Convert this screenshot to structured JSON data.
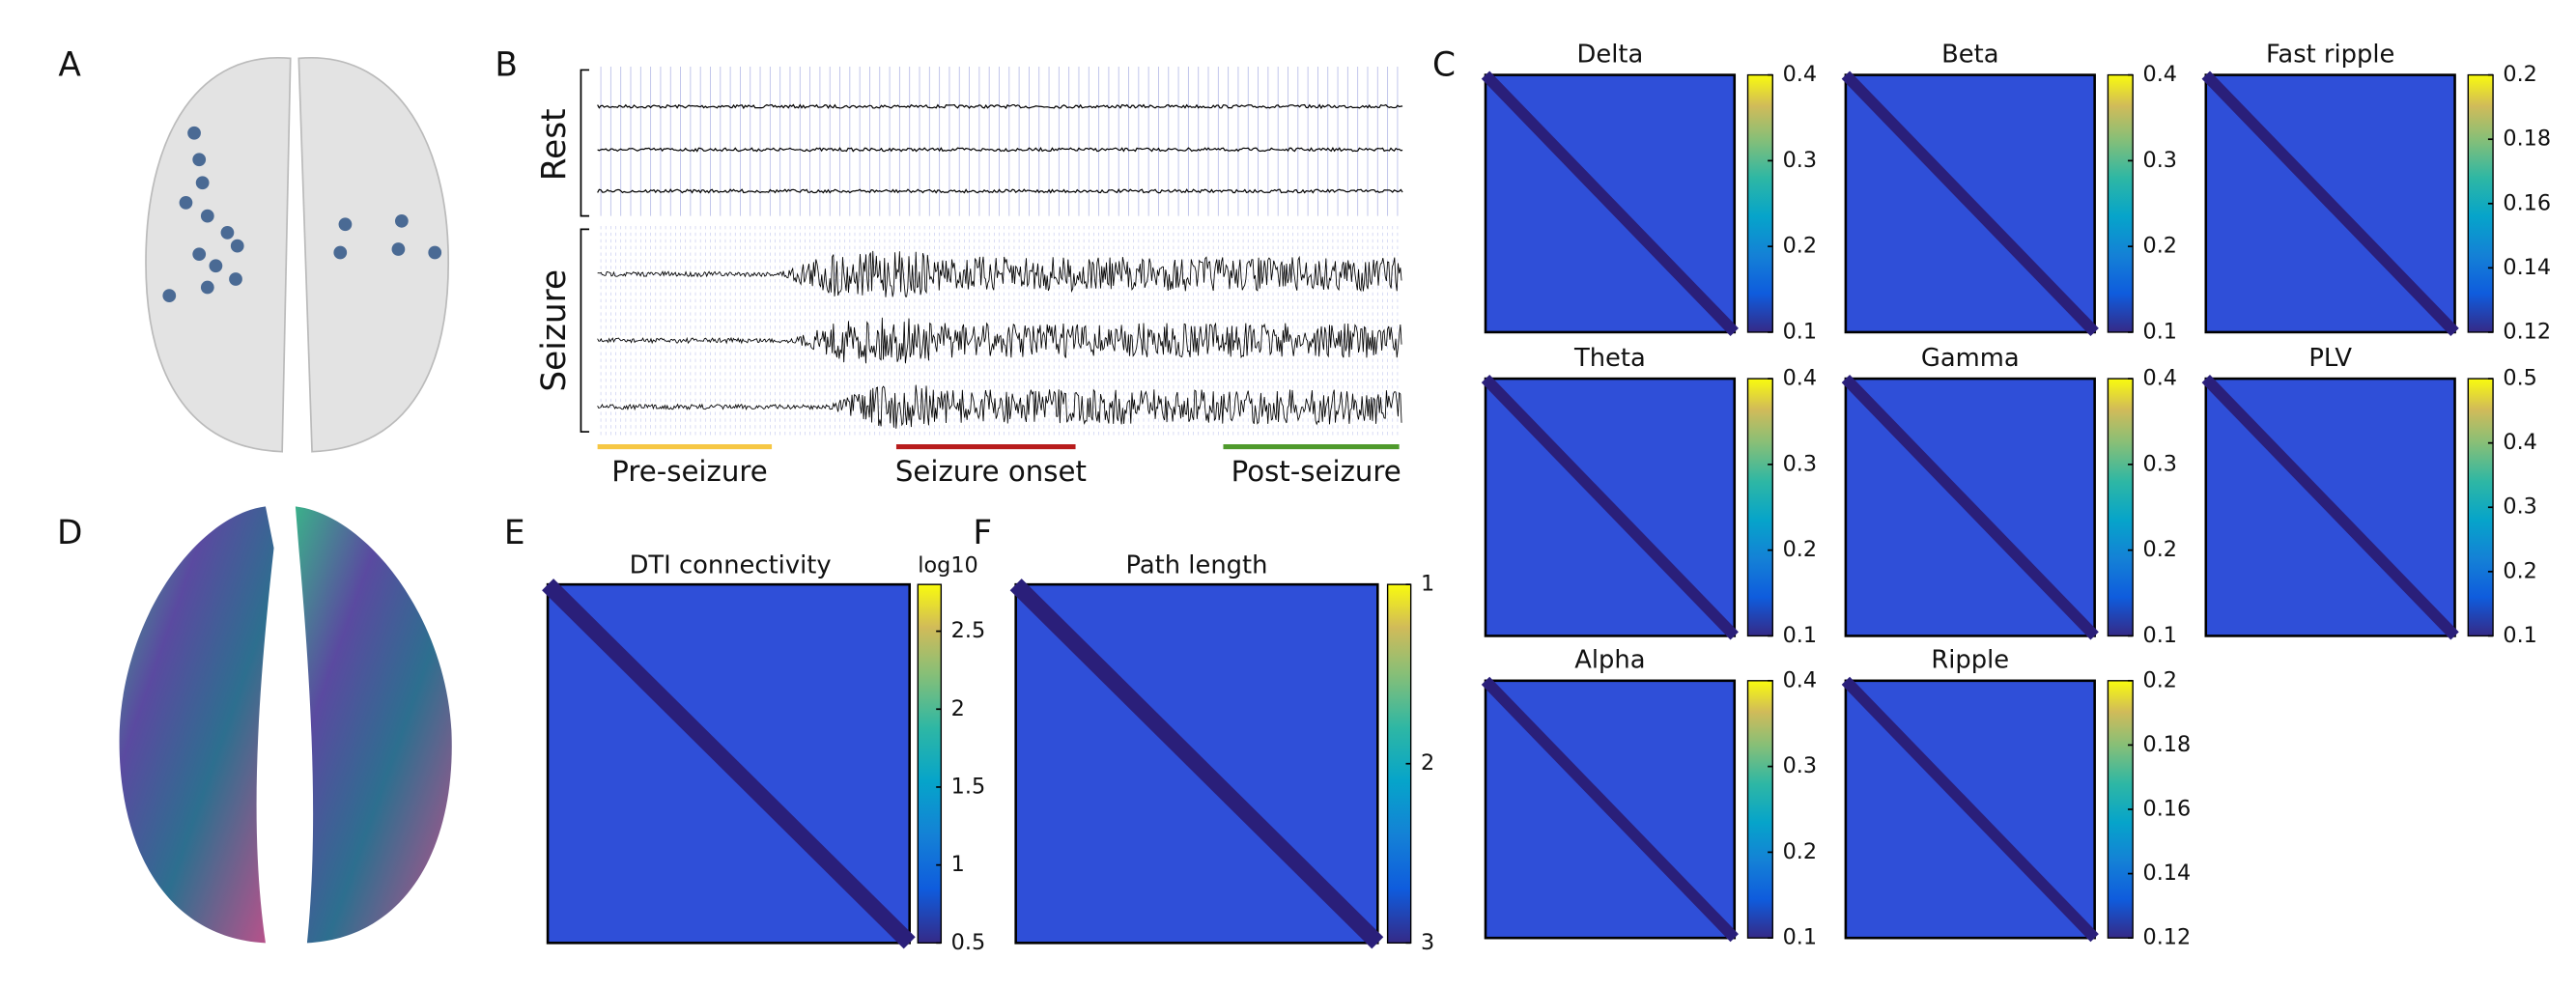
{
  "panels": {
    "A": {
      "label": "A"
    },
    "B": {
      "label": "B",
      "rest_label": "Rest",
      "seizure_label": "Seizure",
      "phases": [
        {
          "name": "Pre-seizure",
          "color": "#f6c744"
        },
        {
          "name": "Seizure onset",
          "color": "#b81c1c"
        },
        {
          "name": "Post-seizure",
          "color": "#4f9a2c"
        }
      ]
    },
    "C": {
      "label": "C",
      "matrices": [
        {
          "title": "Delta",
          "clim": [
            0.1,
            0.4
          ],
          "ticks": [
            0.1,
            0.2,
            0.3,
            0.4
          ]
        },
        {
          "title": "Beta",
          "clim": [
            0.1,
            0.4
          ],
          "ticks": [
            0.1,
            0.2,
            0.3,
            0.4
          ]
        },
        {
          "title": "Fast ripple",
          "clim": [
            0.12,
            0.2
          ],
          "ticks": [
            0.12,
            0.14,
            0.16,
            0.18,
            0.2
          ]
        },
        {
          "title": "Theta",
          "clim": [
            0.1,
            0.4
          ],
          "ticks": [
            0.1,
            0.2,
            0.3,
            0.4
          ]
        },
        {
          "title": "Gamma",
          "clim": [
            0.1,
            0.4
          ],
          "ticks": [
            0.1,
            0.2,
            0.3,
            0.4
          ]
        },
        {
          "title": "PLV",
          "clim": [
            0.1,
            0.5
          ],
          "ticks": [
            0.1,
            0.2,
            0.3,
            0.4,
            0.5
          ]
        },
        {
          "title": "Alpha",
          "clim": [
            0.1,
            0.4
          ],
          "ticks": [
            0.1,
            0.2,
            0.3,
            0.4
          ]
        },
        {
          "title": "Ripple",
          "clim": [
            0.12,
            0.2
          ],
          "ticks": [
            0.12,
            0.14,
            0.16,
            0.18,
            0.2
          ]
        }
      ]
    },
    "D": {
      "label": "D"
    },
    "E": {
      "label": "E",
      "title": "DTI connectivity",
      "unit": "log10",
      "clim": [
        0.5,
        2.8
      ],
      "ticks": [
        0.5,
        1,
        1.5,
        2,
        2.5
      ]
    },
    "F": {
      "label": "F",
      "title": "Path length",
      "clim": [
        3,
        1
      ],
      "ticks": [
        1,
        2,
        3
      ]
    }
  }
}
